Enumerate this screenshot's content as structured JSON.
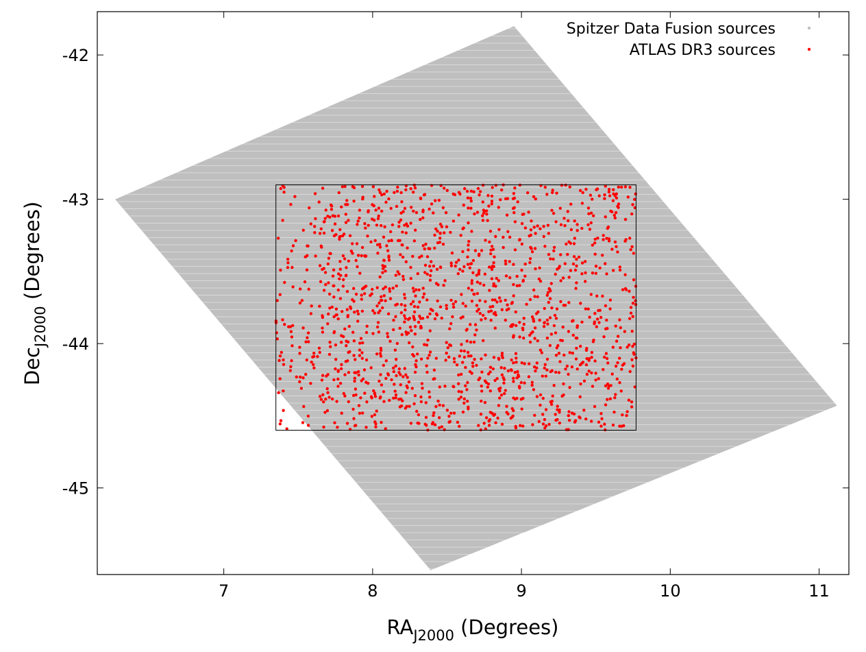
{
  "chart_data": {
    "type": "scatter",
    "title": "",
    "xlabel": {
      "main": "RA",
      "subscript": "J2000",
      "suffix": " (Degrees)"
    },
    "ylabel": {
      "main": "Dec",
      "subscript": "J2000",
      "suffix": " (Degrees)"
    },
    "xlim": [
      6.15,
      11.2
    ],
    "ylim": [
      -45.6,
      -41.7
    ],
    "xticks": [
      {
        "value": 7,
        "label": "7"
      },
      {
        "value": 8,
        "label": "8"
      },
      {
        "value": 9,
        "label": "9"
      },
      {
        "value": 10,
        "label": "10"
      },
      {
        "value": 11,
        "label": "11"
      }
    ],
    "yticks": [
      {
        "value": -42,
        "label": "-42"
      },
      {
        "value": -43,
        "label": "-43"
      },
      {
        "value": -44,
        "label": "-44"
      },
      {
        "value": -45,
        "label": "-45"
      }
    ],
    "grid": false,
    "legend": {
      "position": "top-right"
    },
    "series": [
      {
        "name": "Spitzer Data Fusion sources",
        "color": "#bfbfbf",
        "kind": "dense-coverage",
        "footprint": [
          [
            6.27,
            -43.0
          ],
          [
            8.95,
            -41.8
          ],
          [
            11.12,
            -44.43
          ],
          [
            8.39,
            -45.57
          ]
        ]
      },
      {
        "name": "ATLAS DR3 sources",
        "color": "#ff0000",
        "kind": "points",
        "region": {
          "ra": [
            7.35,
            9.77
          ],
          "dec": [
            -44.6,
            -42.9
          ]
        },
        "n_points": 1600
      }
    ],
    "annotations": [
      {
        "type": "rectangle",
        "ra": [
          7.35,
          9.77
        ],
        "dec": [
          -44.6,
          -42.9
        ],
        "color": "#000000"
      }
    ]
  }
}
